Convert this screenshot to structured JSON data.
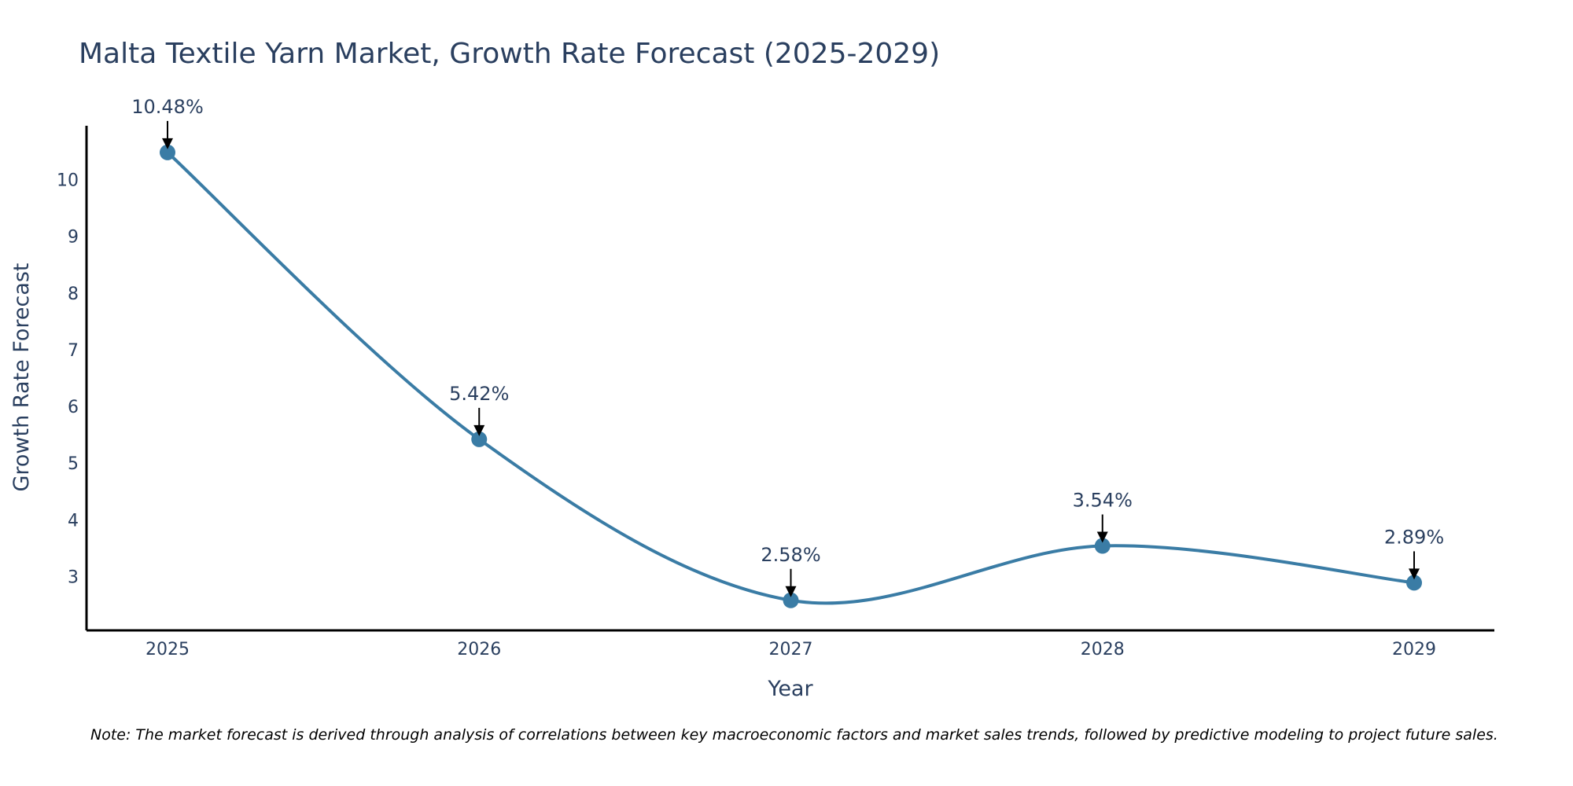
{
  "chart_data": {
    "type": "line",
    "title": "Malta Textile Yarn Market, Growth Rate Forecast (2025-2029)",
    "xlabel": "Year",
    "ylabel": "Growth Rate Forecast",
    "categories": [
      "2025",
      "2026",
      "2027",
      "2028",
      "2029"
    ],
    "series": [
      {
        "name": "Growth Rate Forecast",
        "values": [
          10.48,
          5.42,
          2.58,
          3.54,
          2.89
        ]
      }
    ],
    "data_labels": [
      "10.48%",
      "5.42%",
      "2.58%",
      "3.54%",
      "2.89%"
    ],
    "yticks": [
      3,
      4,
      5,
      6,
      7,
      8,
      9,
      10
    ],
    "ylim": [
      2.05,
      10.95
    ],
    "grid": false,
    "line_color": "#3a7ca5",
    "marker_color": "#3a7ca5",
    "note": "Note: The market forecast is derived through analysis of correlations between key macroeconomic factors and market sales trends, followed by predictive modeling to project future sales."
  }
}
